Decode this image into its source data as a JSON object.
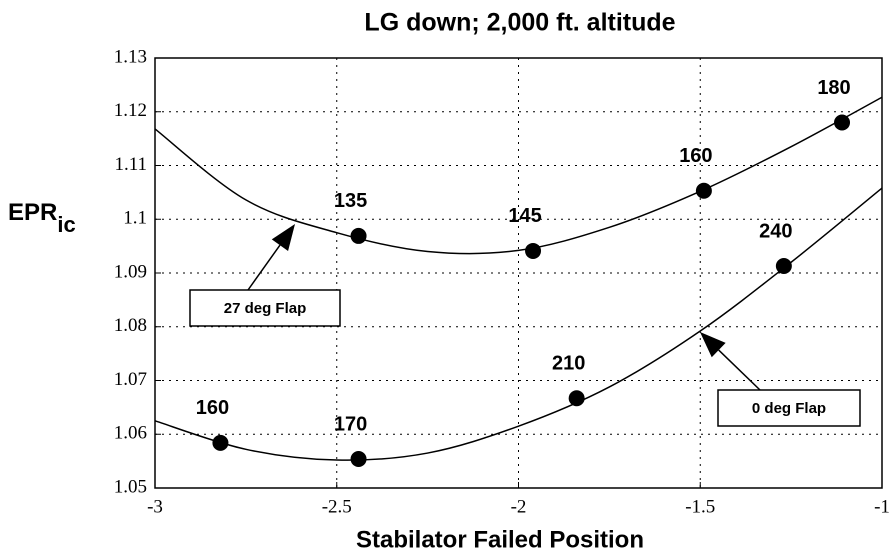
{
  "chart_data": {
    "type": "scatter",
    "title": "LG down; 2,000 ft. altitude",
    "xlabel": "Stabilator Failed Position",
    "ylabel": "EPR",
    "ylabel_sub": "ic",
    "xlim": [
      -3,
      -1
    ],
    "ylim": [
      1.05,
      1.13
    ],
    "xticks": [
      -3,
      -2.5,
      -2,
      -1.5,
      -1
    ],
    "yticks": [
      1.05,
      1.06,
      1.07,
      1.08,
      1.09,
      1.1,
      1.11,
      1.12,
      1.13
    ],
    "grid": true,
    "series": [
      {
        "name": "27 deg Flap",
        "color": "#000000",
        "x": [
          -2.44,
          -1.96,
          -1.49,
          -1.11
        ],
        "values": [
          1.0969,
          1.0941,
          1.1053,
          1.118
        ],
        "point_labels": [
          "135",
          "145",
          "160",
          "180"
        ],
        "curve_x": [
          -3,
          -2.75,
          -2.5,
          -2.25,
          -2,
          -1.75,
          -1.5,
          -1.25,
          -1
        ],
        "curve_values": [
          1.1168,
          1.1036,
          1.0975,
          1.094,
          1.0942,
          1.0985,
          1.1052,
          1.1135,
          1.1227
        ]
      },
      {
        "name": "0 deg Flap",
        "color": "#000000",
        "x": [
          -2.82,
          -2.44,
          -1.84,
          -1.27
        ],
        "values": [
          1.0584,
          1.0554,
          1.0667,
          1.0913
        ],
        "point_labels": [
          "160",
          "170",
          "210",
          "240"
        ],
        "curve_x": [
          -3,
          -2.75,
          -2.5,
          -2.25,
          -2,
          -1.75,
          -1.5,
          -1.25,
          -1
        ],
        "curve_values": [
          1.0625,
          1.0572,
          1.0552,
          1.0565,
          1.0615,
          1.0688,
          1.0792,
          1.092,
          1.1058
        ]
      }
    ]
  }
}
